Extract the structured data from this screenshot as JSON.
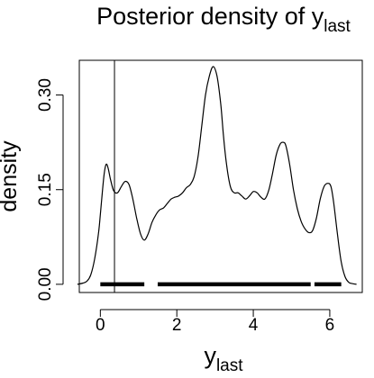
{
  "chart_data": {
    "type": "line",
    "title": {
      "main": "Posterior density of y",
      "sub": "last"
    },
    "xlabel": {
      "main": "y",
      "sub": "last"
    },
    "ylabel": "density",
    "xlim": [
      -0.55,
      6.85
    ],
    "ylim": [
      -0.013,
      0.355
    ],
    "xticks": [
      0,
      2,
      4,
      6
    ],
    "xtick_labels": [
      "0",
      "2",
      "4",
      "6"
    ],
    "yticks": [
      0.0,
      0.15,
      0.3
    ],
    "ytick_labels": [
      "0.00",
      "0.15",
      "0.30"
    ],
    "grid": false,
    "legend": "none",
    "series": [
      {
        "x": [
          -0.6,
          -0.45,
          -0.35,
          -0.25,
          -0.15,
          -0.05,
          0.0,
          0.05,
          0.1,
          0.15,
          0.2,
          0.27,
          0.35,
          0.45,
          0.55,
          0.65,
          0.75,
          0.85,
          0.95,
          1.05,
          1.15,
          1.25,
          1.35,
          1.45,
          1.55,
          1.65,
          1.75,
          1.85,
          1.95,
          2.05,
          2.15,
          2.25,
          2.35,
          2.45,
          2.55,
          2.65,
          2.75,
          2.85,
          2.95,
          3.05,
          3.15,
          3.22,
          3.3,
          3.4,
          3.5,
          3.6,
          3.7,
          3.8,
          3.9,
          4.0,
          4.1,
          4.2,
          4.3,
          4.4,
          4.5,
          4.6,
          4.7,
          4.78,
          4.85,
          4.95,
          5.05,
          5.15,
          5.25,
          5.35,
          5.45,
          5.55,
          5.65,
          5.75,
          5.85,
          5.95,
          6.03,
          6.1,
          6.2,
          6.3,
          6.4,
          6.5,
          6.6,
          6.7
        ],
        "values": [
          0.0,
          0.002,
          0.005,
          0.015,
          0.04,
          0.08,
          0.11,
          0.145,
          0.175,
          0.19,
          0.185,
          0.165,
          0.148,
          0.145,
          0.155,
          0.163,
          0.158,
          0.135,
          0.105,
          0.08,
          0.07,
          0.08,
          0.098,
          0.11,
          0.118,
          0.121,
          0.128,
          0.135,
          0.138,
          0.14,
          0.145,
          0.153,
          0.158,
          0.17,
          0.2,
          0.25,
          0.3,
          0.33,
          0.345,
          0.33,
          0.285,
          0.235,
          0.19,
          0.155,
          0.145,
          0.145,
          0.14,
          0.135,
          0.14,
          0.147,
          0.145,
          0.138,
          0.135,
          0.148,
          0.175,
          0.205,
          0.222,
          0.225,
          0.22,
          0.19,
          0.15,
          0.12,
          0.1,
          0.088,
          0.082,
          0.085,
          0.105,
          0.135,
          0.155,
          0.16,
          0.155,
          0.13,
          0.08,
          0.035,
          0.012,
          0.003,
          0.001,
          0.0
        ]
      }
    ],
    "vline": 0.37,
    "interval_segments": [
      [
        0.0,
        1.15
      ],
      [
        1.5,
        5.5
      ],
      [
        5.6,
        6.3
      ]
    ]
  }
}
